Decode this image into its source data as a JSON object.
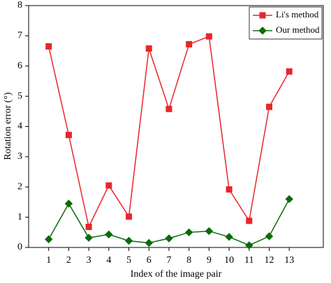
{
  "chart_data": {
    "type": "line",
    "xlabel": "Index of the image pair",
    "ylabel": "Rotation error (°)",
    "x": [
      1,
      2,
      3,
      4,
      5,
      6,
      7,
      8,
      9,
      10,
      11,
      12,
      13
    ],
    "xlim": [
      0,
      14.7
    ],
    "xticks": [
      1,
      2,
      3,
      4,
      5,
      6,
      7,
      8,
      9,
      10,
      11,
      12,
      13
    ],
    "ylim": [
      0,
      8
    ],
    "yticks": [
      0,
      1,
      2,
      3,
      4,
      5,
      6,
      7,
      8
    ],
    "legend": "upper right",
    "series": [
      {
        "name": "Li's method",
        "color": "#e8262b",
        "marker": "square",
        "values": [
          6.65,
          3.72,
          0.68,
          2.05,
          1.02,
          6.58,
          4.58,
          6.72,
          6.98,
          1.92,
          0.88,
          4.65,
          5.82
        ]
      },
      {
        "name": "Our method",
        "color": "#0a6b0a",
        "marker": "diamond",
        "values": [
          0.27,
          1.45,
          0.32,
          0.43,
          0.22,
          0.15,
          0.3,
          0.5,
          0.54,
          0.35,
          0.07,
          0.37,
          1.6
        ]
      }
    ]
  }
}
